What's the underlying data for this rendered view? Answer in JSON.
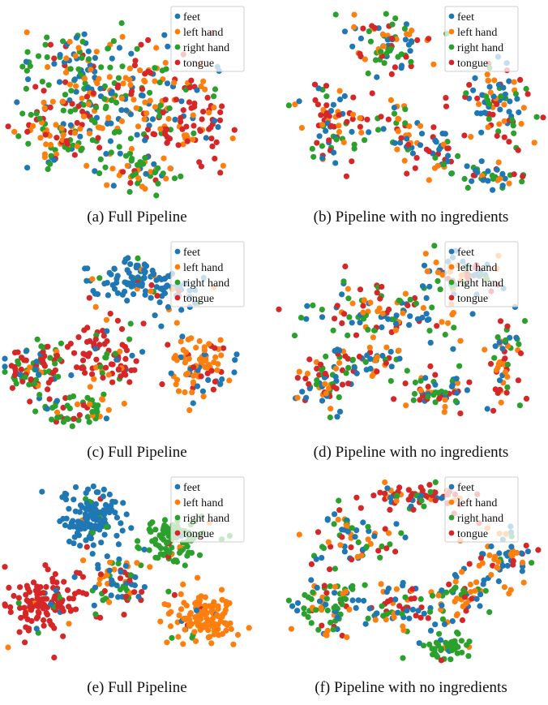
{
  "colors": {
    "feet": "#1f77b4",
    "left_hand": "#ff7f0e",
    "right_hand": "#2ca02c",
    "tongue": "#d62728"
  },
  "legend": [
    "feet",
    "left hand",
    "right hand",
    "tongue"
  ],
  "chart_data": [
    {
      "type": "scatter",
      "caption": "(a) Full Pipeline",
      "legend_position": "top-right",
      "series": [
        {
          "name": "feet"
        },
        {
          "name": "left hand"
        },
        {
          "name": "right hand"
        },
        {
          "name": "tongue"
        }
      ]
    },
    {
      "type": "scatter",
      "caption": "(b) Pipeline with no ingredients",
      "legend_position": "top-right",
      "series": [
        {
          "name": "feet"
        },
        {
          "name": "left hand"
        },
        {
          "name": "right hand"
        },
        {
          "name": "tongue"
        }
      ]
    },
    {
      "type": "scatter",
      "caption": "(c) Full Pipeline",
      "legend_position": "top-right",
      "series": [
        {
          "name": "feet"
        },
        {
          "name": "left hand"
        },
        {
          "name": "right hand"
        },
        {
          "name": "tongue"
        }
      ]
    },
    {
      "type": "scatter",
      "caption": "(d) Pipeline with no ingredients",
      "legend_position": "top-right",
      "series": [
        {
          "name": "feet"
        },
        {
          "name": "left hand"
        },
        {
          "name": "right hand"
        },
        {
          "name": "tongue"
        }
      ]
    },
    {
      "type": "scatter",
      "caption": "(e) Full Pipeline",
      "legend_position": "top-right",
      "series": [
        {
          "name": "feet"
        },
        {
          "name": "left hand"
        },
        {
          "name": "right hand"
        },
        {
          "name": "tongue"
        }
      ]
    },
    {
      "type": "scatter",
      "caption": "(f) Pipeline with no ingredients",
      "legend_position": "top-right",
      "series": [
        {
          "name": "feet"
        },
        {
          "name": "left hand"
        },
        {
          "name": "right hand"
        },
        {
          "name": "tongue"
        }
      ]
    }
  ]
}
